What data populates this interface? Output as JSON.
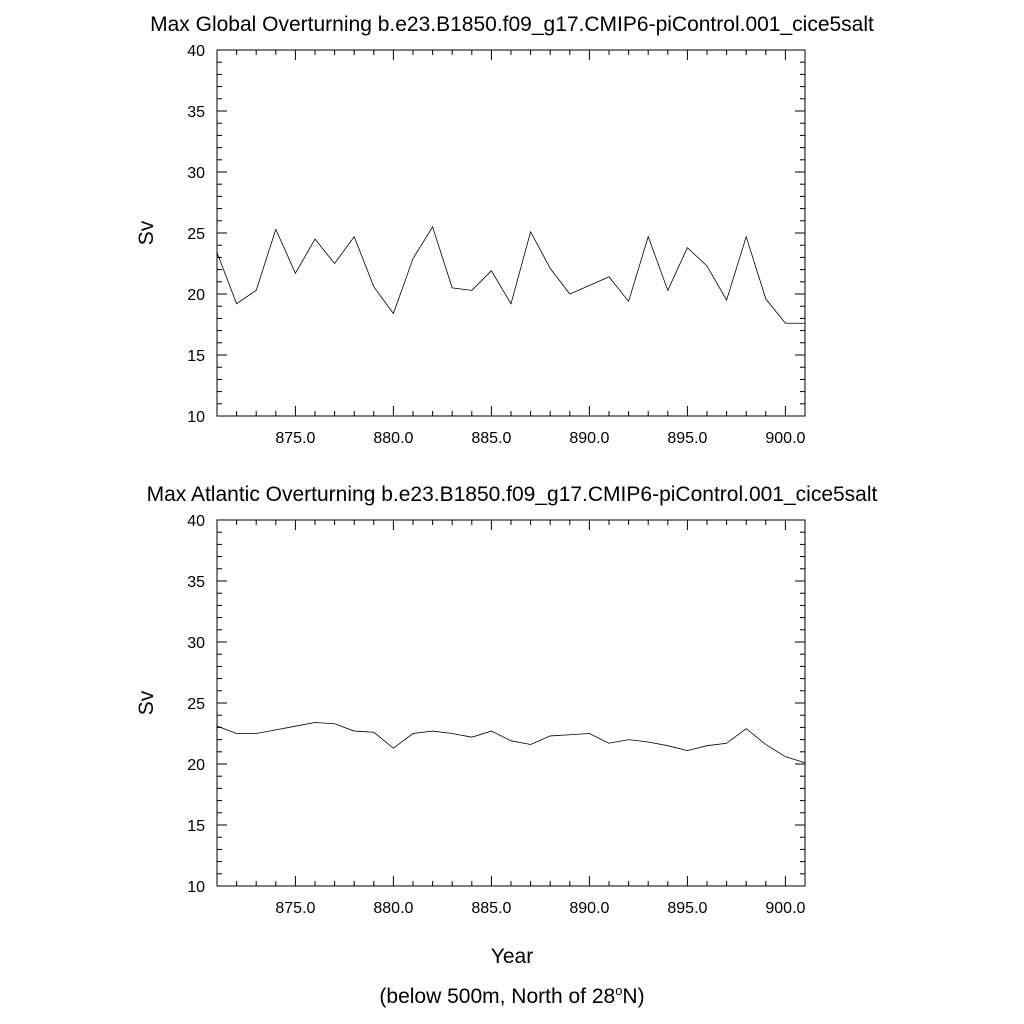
{
  "chart_data": [
    {
      "type": "line",
      "title": "Max Global Overturning b.e23.B1850.f09_g17.CMIP6-piControl.001_cice5salt",
      "xlabel": "",
      "ylabel": "Sv",
      "xlim": [
        871,
        901
      ],
      "ylim": [
        10,
        40
      ],
      "xticks": [
        875,
        880,
        885,
        890,
        895,
        900
      ],
      "xtick_labels": [
        "875.0",
        "880.0",
        "885.0",
        "890.0",
        "895.0",
        "900.0"
      ],
      "yticks": [
        10,
        15,
        20,
        25,
        30,
        35,
        40
      ],
      "ytick_labels": [
        "10",
        "15",
        "20",
        "25",
        "30",
        "35",
        "40"
      ],
      "grid": false,
      "series": [
        {
          "x": [
            871.0,
            872.0,
            873.0,
            874.0,
            875.0,
            876.0,
            877.0,
            878.0,
            879.0,
            880.0,
            881.0,
            882.0,
            883.0,
            884.0,
            885.0,
            886.0,
            887.0,
            888.0,
            889.0,
            890.0,
            891.0,
            892.0,
            893.0,
            894.0,
            895.0,
            896.0,
            897.0,
            898.0,
            899.0,
            900.0,
            901.0
          ],
          "values": [
            23.4,
            19.2,
            20.3,
            25.3,
            21.7,
            24.5,
            22.5,
            24.7,
            20.6,
            18.4,
            22.9,
            25.5,
            20.5,
            20.3,
            21.9,
            19.2,
            25.1,
            22.1,
            20.0,
            20.7,
            21.4,
            19.4,
            24.7,
            20.3,
            23.8,
            22.3,
            19.5,
            24.7,
            19.6,
            17.6,
            17.6
          ]
        }
      ]
    },
    {
      "type": "line",
      "title": "Max Atlantic Overturning b.e23.B1850.f09_g17.CMIP6-piControl.001_cice5salt",
      "xlabel": "Year",
      "ylabel": "Sv",
      "xlim": [
        871,
        901
      ],
      "ylim": [
        10,
        40
      ],
      "xticks": [
        875,
        880,
        885,
        890,
        895,
        900
      ],
      "xtick_labels": [
        "875.0",
        "880.0",
        "885.0",
        "890.0",
        "895.0",
        "900.0"
      ],
      "yticks": [
        10,
        15,
        20,
        25,
        30,
        35,
        40
      ],
      "ytick_labels": [
        "10",
        "15",
        "20",
        "25",
        "30",
        "35",
        "40"
      ],
      "grid": false,
      "series": [
        {
          "x": [
            871.0,
            872.0,
            873.0,
            874.0,
            875.0,
            876.0,
            877.0,
            878.0,
            879.0,
            880.0,
            881.0,
            882.0,
            883.0,
            884.0,
            885.0,
            886.0,
            887.0,
            888.0,
            889.0,
            890.0,
            891.0,
            892.0,
            893.0,
            894.0,
            895.0,
            896.0,
            897.0,
            898.0,
            899.0,
            900.0,
            901.0
          ],
          "values": [
            23.1,
            22.5,
            22.5,
            22.8,
            23.1,
            23.4,
            23.3,
            22.7,
            22.6,
            21.3,
            22.5,
            22.7,
            22.5,
            22.2,
            22.7,
            21.9,
            21.6,
            22.3,
            22.4,
            22.5,
            21.7,
            22.0,
            21.8,
            21.5,
            21.1,
            21.5,
            21.7,
            22.9,
            21.6,
            20.6,
            20.1
          ]
        }
      ]
    }
  ],
  "footnote": {
    "prefix": "(below 500m, North of 28",
    "superscript": "o",
    "suffix": "N)"
  }
}
